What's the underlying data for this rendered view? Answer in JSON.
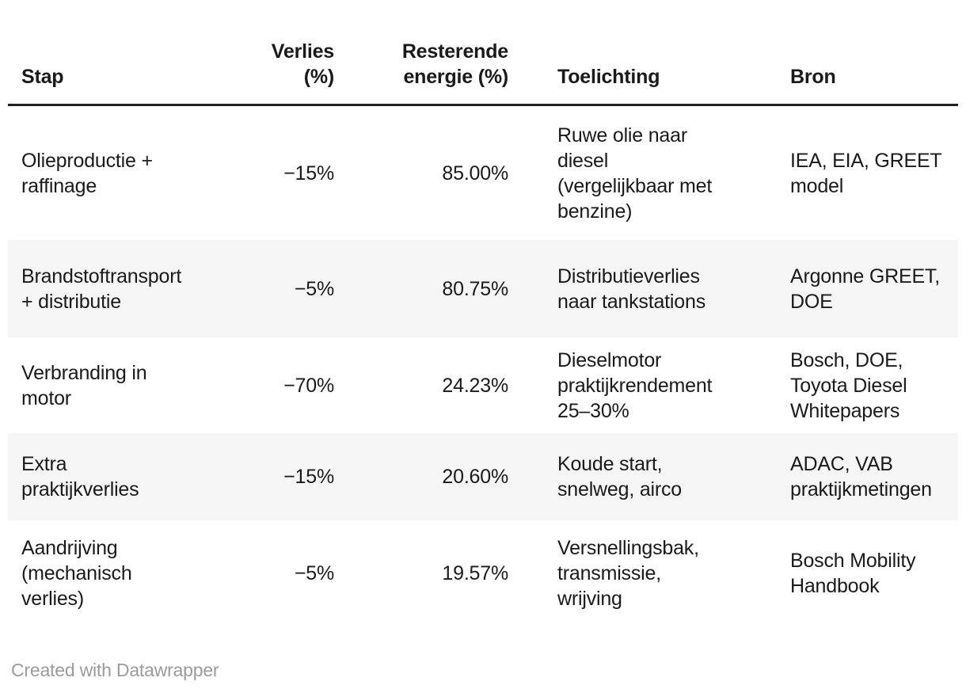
{
  "chart_data": {
    "type": "table",
    "title": "",
    "columns": [
      "Stap",
      "Verlies (%)",
      "Resterende energie (%)",
      "Toelichting",
      "Bron"
    ],
    "rows": [
      [
        "Olieproductie + raffinage",
        "−15%",
        "85.00%",
        "Ruwe olie naar diesel (vergelijkbaar met benzine)",
        "IEA, EIA, GREET model"
      ],
      [
        "Brandstoftransport + distributie",
        "−5%",
        "80.75%",
        "Distributieverlies naar tankstations",
        "Argonne GREET, DOE"
      ],
      [
        "Verbranding in motor",
        "−70%",
        "24.23%",
        "Dieselmotor praktijkrendement 25–30%",
        "Bosch, DOE, Toyota Diesel Whitepapers"
      ],
      [
        "Extra praktijkverlies",
        "−15%",
        "20.60%",
        "Koude start, snelweg, airco",
        "ADAC, VAB praktijkmetingen"
      ],
      [
        "Aandrijving (mechanisch verlies)",
        "−5%",
        "19.57%",
        "Versnellingsbak, transmissie, wrijving",
        "Bosch Mobility Handbook"
      ]
    ],
    "layout_hints": {
      "numeric_columns_right_aligned": [
        "Verlies (%)",
        "Resterende energie (%)"
      ],
      "zebra_striping": "rows 2 and 4 shaded",
      "header_rule": "thick dark line under header"
    }
  },
  "display": {
    "header": {
      "stap": "Stap",
      "verlies": "Verlies\n(%)",
      "resterende": "Resterende\nenergie (%)",
      "toelichting": "Toelichting",
      "bron": "Bron"
    },
    "rows": [
      {
        "stap": "Olieproductie +\nraffinage",
        "verlies": "−15%",
        "resterende": "85.00%",
        "toelichting": "Ruwe olie naar\ndiesel\n(vergelijkbaar met\nbenzine)",
        "bron": "IEA, EIA, GREET\nmodel"
      },
      {
        "stap": "Brandstoftransport\n+ distributie",
        "verlies": "−5%",
        "resterende": "80.75%",
        "toelichting": "Distributieverlies\nnaar tankstations",
        "bron": "Argonne GREET,\nDOE"
      },
      {
        "stap": "Verbranding in\nmotor",
        "verlies": "−70%",
        "resterende": "24.23%",
        "toelichting": "Dieselmotor\npraktijkrendement\n25–30%",
        "bron": "Bosch, DOE,\nToyota Diesel\nWhitepapers"
      },
      {
        "stap": "Extra\npraktijkverlies",
        "verlies": "−15%",
        "resterende": "20.60%",
        "toelichting": "Koude start,\nsnelweg, airco",
        "bron": "ADAC, VAB\npraktijkmetingen"
      },
      {
        "stap": "Aandrijving\n(mechanisch\nverlies)",
        "verlies": "−5%",
        "resterende": "19.57%",
        "toelichting": "Versnellingsbak,\ntransmissie,\nwrijving",
        "bron": "Bosch Mobility\nHandbook"
      }
    ]
  },
  "footer": {
    "credit": "Created with Datawrapper"
  },
  "colors": {
    "text": "#1a1a1a",
    "stripe": "#f5f5f5",
    "header_rule": "#212121",
    "credit": "#9b9b9b",
    "background": "#ffffff"
  }
}
